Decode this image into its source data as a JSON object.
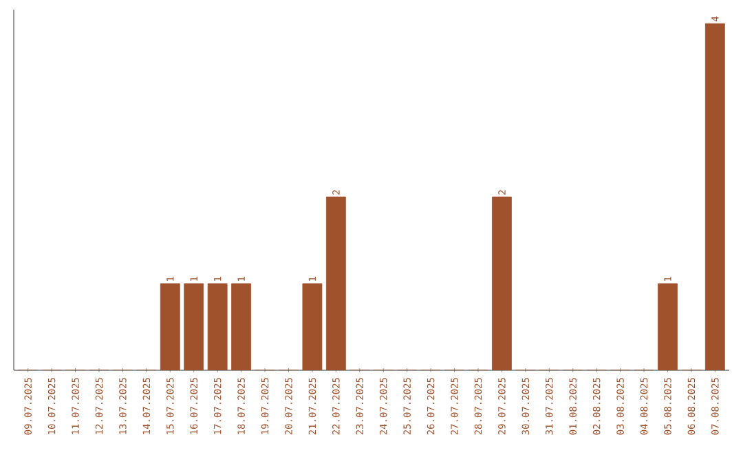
{
  "chart_data": {
    "type": "bar",
    "categories": [
      "09.07.2025",
      "10.07.2025",
      "11.07.2025",
      "12.07.2025",
      "13.07.2025",
      "14.07.2025",
      "15.07.2025",
      "16.07.2025",
      "17.07.2025",
      "18.07.2025",
      "19.07.2025",
      "20.07.2025",
      "21.07.2025",
      "22.07.2025",
      "23.07.2025",
      "24.07.2025",
      "25.07.2025",
      "26.07.2025",
      "27.07.2025",
      "28.07.2025",
      "29.07.2025",
      "30.07.2025",
      "31.07.2025",
      "01.08.2025",
      "02.08.2025",
      "03.08.2025",
      "04.08.2025",
      "05.08.2025",
      "06.08.2025",
      "07.08.2025"
    ],
    "values": [
      0,
      0,
      0,
      0,
      0,
      0,
      1,
      1,
      1,
      1,
      0,
      0,
      1,
      2,
      0,
      0,
      0,
      0,
      0,
      0,
      2,
      0,
      0,
      0,
      0,
      0,
      0,
      1,
      0,
      4
    ],
    "value_labels": [
      null,
      null,
      null,
      null,
      null,
      null,
      "1",
      "1",
      "1",
      "1",
      null,
      null,
      "1",
      "2",
      null,
      null,
      null,
      null,
      null,
      null,
      "2",
      null,
      null,
      null,
      null,
      null,
      null,
      "1",
      null,
      "4"
    ],
    "color": "#a0522d"
  }
}
